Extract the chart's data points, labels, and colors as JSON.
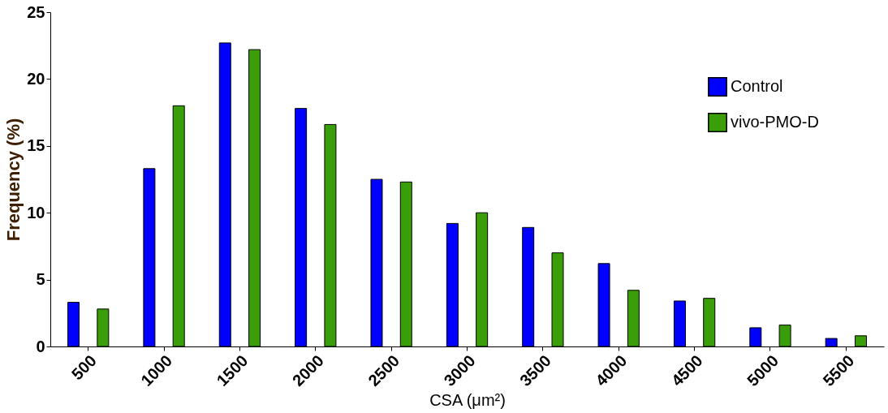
{
  "chart_data": {
    "type": "bar",
    "xlabel": "CSA (μm²)",
    "ylabel": "Frequency (%)",
    "categories": [
      "500",
      "1000",
      "1500",
      "2000",
      "2500",
      "3000",
      "3500",
      "4000",
      "4500",
      "5000",
      "5500"
    ],
    "series": [
      {
        "name": "Control",
        "color": "#0000ff",
        "values": [
          3.3,
          13.3,
          22.7,
          17.8,
          12.5,
          9.2,
          8.9,
          6.2,
          3.4,
          1.4,
          0.6
        ]
      },
      {
        "name": "vivo-PMO-D",
        "color": "#3a9e0a",
        "values": [
          2.8,
          18,
          22.2,
          16.6,
          12.3,
          10,
          7,
          4.2,
          3.6,
          1.6,
          0.8
        ]
      }
    ],
    "ylim": [
      0,
      25
    ],
    "yticks": [
      0,
      5,
      10,
      15,
      20,
      25
    ],
    "grid": false,
    "legend": "top right"
  }
}
